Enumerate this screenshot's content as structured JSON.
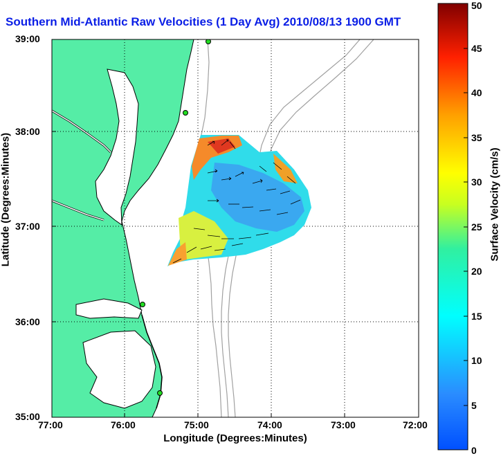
{
  "title": "Southern Mid-Atlantic Raw Velocities (1 Day Avg) 2010/08/13 1900 GMT",
  "xlabel": "Longitude (Degrees:Minutes)",
  "ylabel": "Latitude (Degrees:Minutes)",
  "x_ticks": [
    "77:00",
    "76:00",
    "75:00",
    "74:00",
    "73:00",
    "72:00"
  ],
  "y_ticks": [
    "39:00",
    "38:00",
    "37:00",
    "36:00",
    "35:00"
  ],
  "colorbar": {
    "label": "Surface Velocity (cm/s)",
    "ticks": [
      "0",
      "5",
      "10",
      "15",
      "20",
      "25",
      "30",
      "35",
      "40",
      "45",
      "50"
    ],
    "range": [
      0,
      50
    ],
    "colormap": "jet"
  },
  "colors": {
    "land": "#55eda6",
    "water": "#ffffff",
    "title": "#0a1ee6",
    "coast": "#000000",
    "bathymetry": "#a0a0a0",
    "station": "#22dd22"
  },
  "stations": [
    "station-1",
    "station-2",
    "station-3",
    "station-4"
  ]
}
